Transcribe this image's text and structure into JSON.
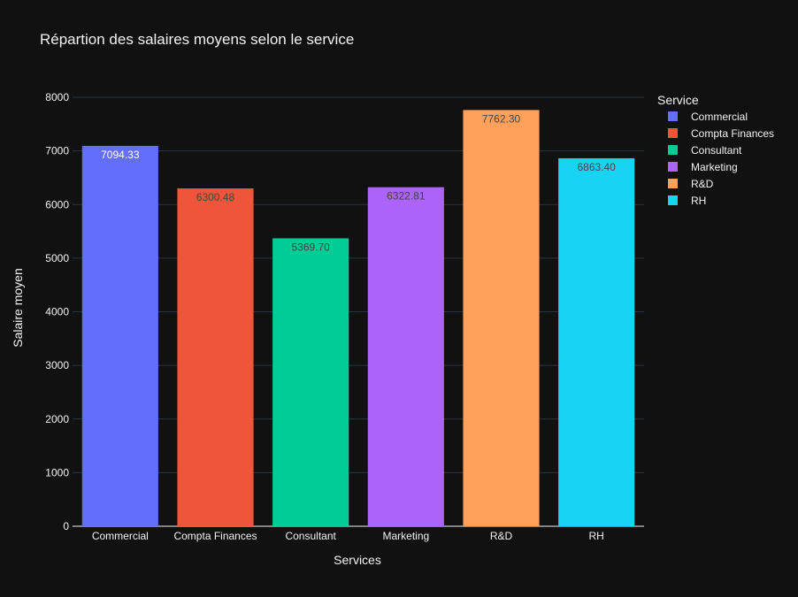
{
  "chart_data": {
    "type": "bar",
    "title": "Répartion des salaires moyens selon le service",
    "xlabel": "Services",
    "ylabel": "Salaire moyen",
    "ylim": [
      0,
      8000
    ],
    "yticks": [
      0,
      1000,
      2000,
      3000,
      4000,
      5000,
      6000,
      7000,
      8000
    ],
    "grid": true,
    "categories": [
      "Commercial",
      "Compta Finances",
      "Consultant",
      "Marketing",
      "R&D",
      "RH"
    ],
    "values": [
      7094.33,
      6300.48,
      5369.7,
      6322.81,
      7762.3,
      6863.4
    ],
    "data_labels": [
      "7094.33",
      "6300.48",
      "5369.70",
      "6322.81",
      "7762.30",
      "6863.40"
    ],
    "colors": [
      "#636efa",
      "#ef553b",
      "#00cc96",
      "#ab63fa",
      "#ffa15a",
      "#19d3f3"
    ],
    "label_colors": [
      "#ffffff",
      "#444444",
      "#444444",
      "#444444",
      "#444444",
      "#444444"
    ],
    "legend": {
      "title": "Service",
      "placement": "top-right",
      "entries": [
        "Commercial",
        "Compta Finances",
        "Consultant",
        "Marketing",
        "R&D",
        "RH"
      ]
    },
    "background": "#111111",
    "grid_color": "#283442"
  }
}
